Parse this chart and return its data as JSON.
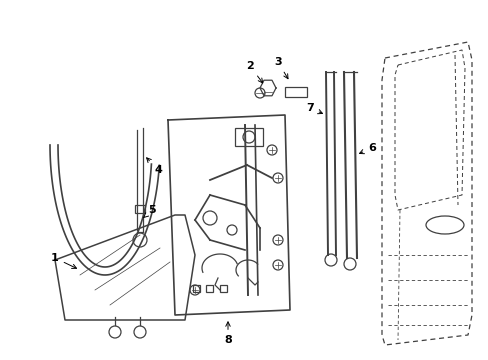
{
  "background_color": "#ffffff",
  "line_color": "#404040",
  "figsize": [
    4.89,
    3.6
  ],
  "dpi": 100
}
